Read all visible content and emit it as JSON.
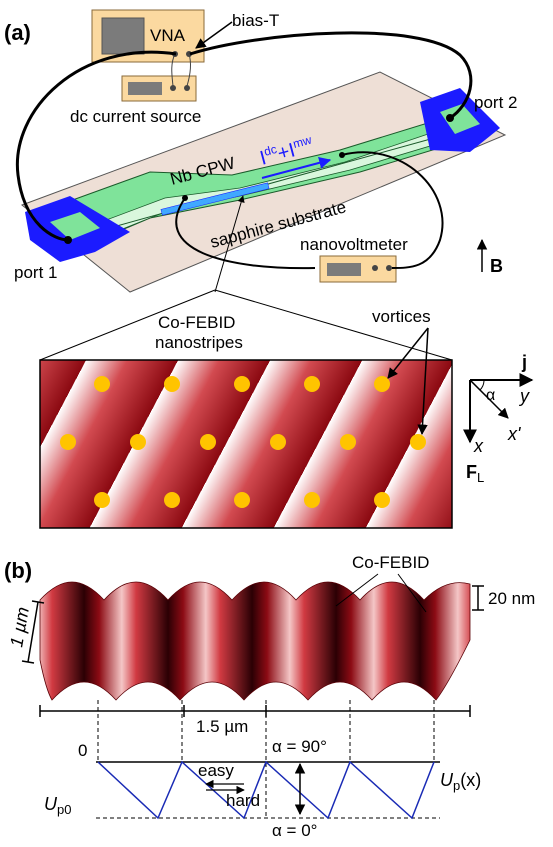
{
  "panel_a": {
    "label": "(a)",
    "vna": "VNA",
    "bias_t": "bias-T",
    "dc_source": "dc current source",
    "port1": "port 1",
    "port2": "port 2",
    "cpw": "Nb CPW",
    "current_I": "I",
    "current_dc": "dc",
    "current_plus": "+I",
    "current_mw": "mw",
    "substrate": "sapphire substrate",
    "nanovoltmeter": "nanovoltmeter",
    "field_B": "B",
    "cofebid_line1": "Co-FEBID",
    "cofebid_line2": "nanostripes",
    "vortices": "vortices",
    "axis_j": "j",
    "axis_alpha": "α",
    "axis_y": "y",
    "axis_x": "x",
    "axis_xprime": "x'",
    "force_F": "F",
    "force_sub": "L"
  },
  "panel_b": {
    "label": "(b)",
    "cofebid": "Co-FEBID",
    "height_scale": "20 nm",
    "vertical_scale": "1 µm",
    "horizontal_scale": "1.5 µm",
    "zero": "0",
    "alpha_90": "α = 90°",
    "alpha_0": "α = 0°",
    "easy": "easy",
    "hard": "hard",
    "up_label": "U",
    "up_sub": "p",
    "up_arg": "(x)",
    "up0_label": "U",
    "up0_sub": "p0"
  },
  "colors": {
    "cpw_green": "#7fe39a",
    "port_blue": "#1b1bff",
    "substrate": "#eedfd6",
    "stripe_red": "#b3101a",
    "vortex": "#ffc400",
    "instrument": "#fbd9a0",
    "potential_line": "#1a2bb5"
  }
}
